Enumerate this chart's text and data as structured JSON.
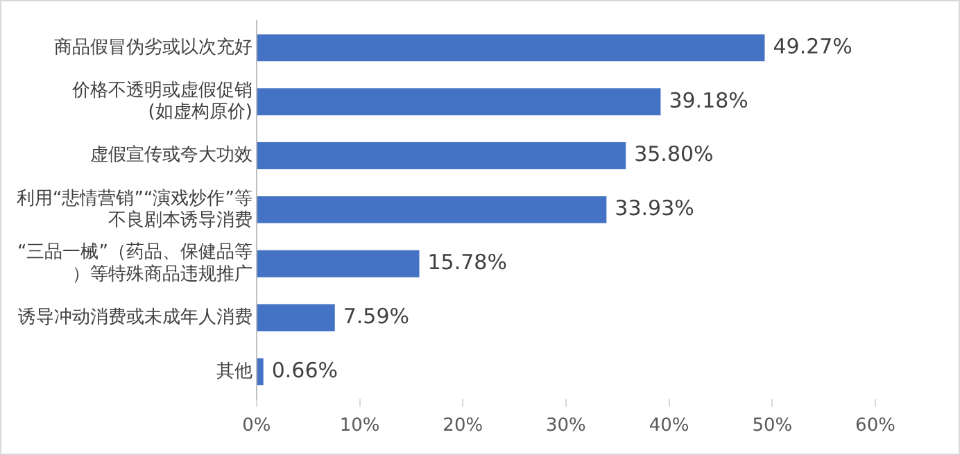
{
  "chart_data": {
    "type": "bar",
    "orientation": "horizontal",
    "categories": [
      "商品假冒伪劣或以次充好",
      "价格不透明或虚假促销(如虚构原价)",
      "虚假宣传或夸大功效",
      "利用“悲情营销”“演戏炒作”等不良剧本诱导消费",
      "“三品一械”（药品、保健品等）等特殊商品违规推广",
      "诱导冲动消费或未成年人消费",
      "其他"
    ],
    "values": [
      49.27,
      39.18,
      35.8,
      33.93,
      15.78,
      7.59,
      0.66
    ],
    "value_labels": [
      "49.27%",
      "39.18%",
      "35.80%",
      "33.93%",
      "15.78%",
      "7.59%",
      "0.66%"
    ],
    "color": "#4472c4",
    "xlim": [
      0,
      60
    ],
    "xticks": [
      {
        "value": 0,
        "label": "0%"
      },
      {
        "value": 10,
        "label": "10%"
      },
      {
        "value": 20,
        "label": "20%"
      },
      {
        "value": 30,
        "label": "30%"
      },
      {
        "value": 40,
        "label": "40%"
      },
      {
        "value": 50,
        "label": "50%"
      },
      {
        "value": 60,
        "label": "60%"
      }
    ],
    "grid": false,
    "legend": false
  }
}
